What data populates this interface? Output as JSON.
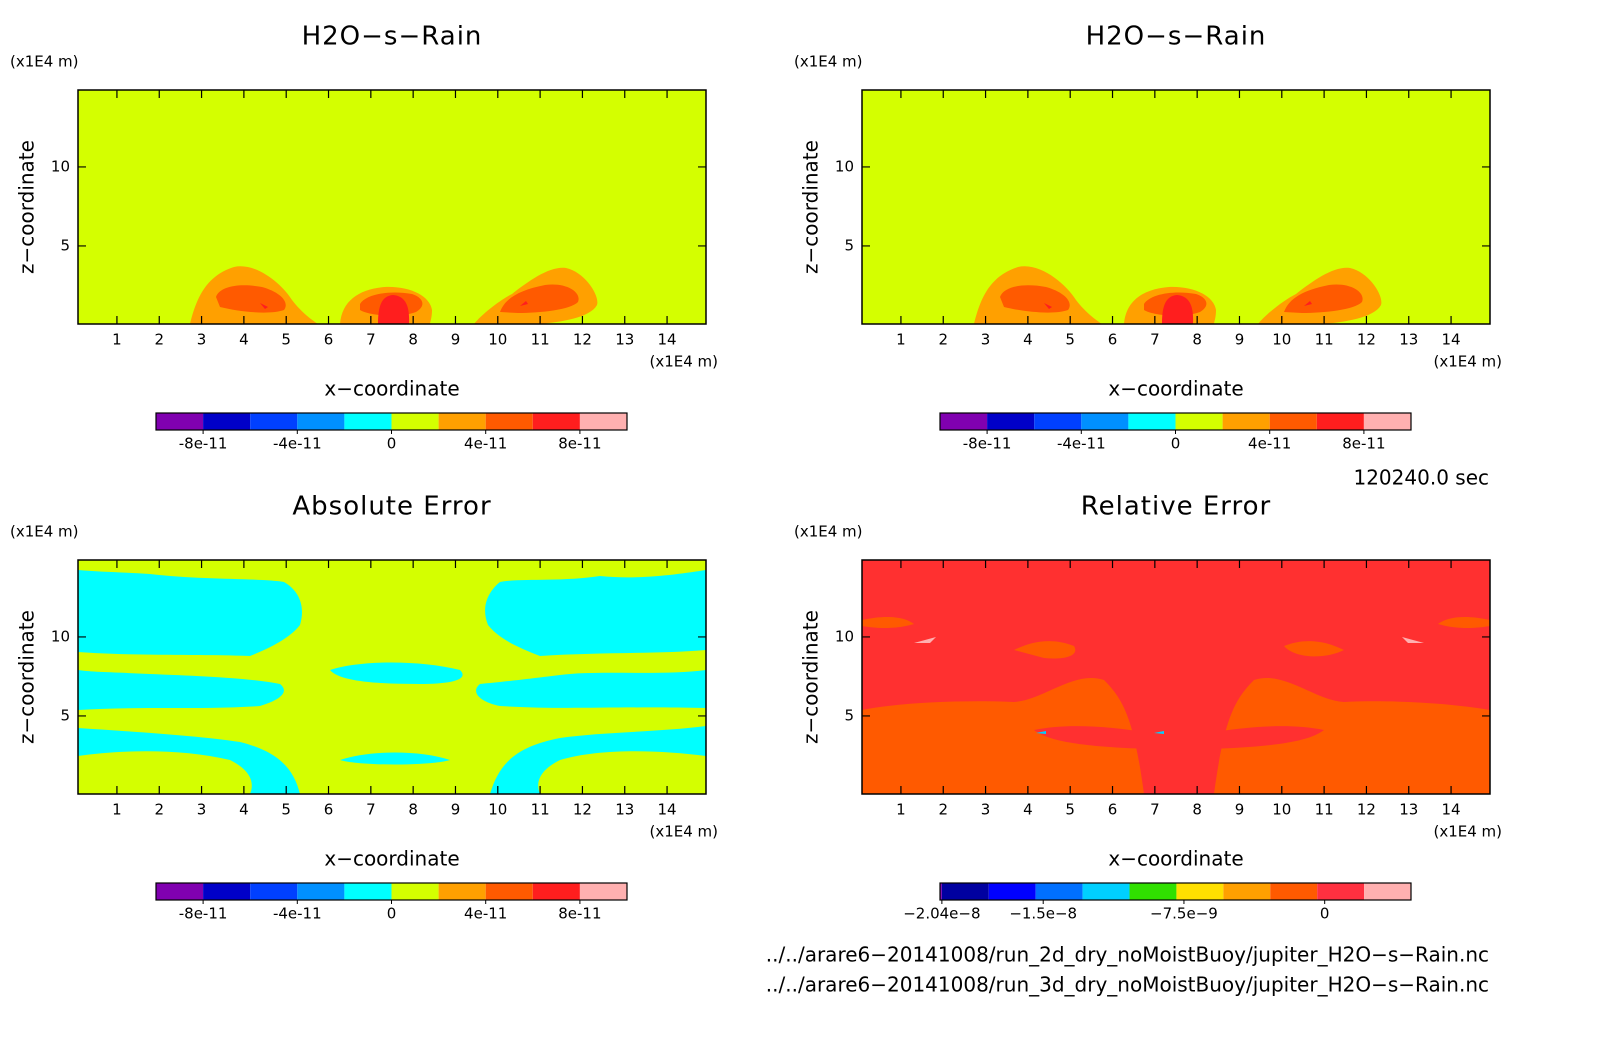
{
  "chart_data": [
    {
      "type": "contour",
      "title": "H2O−s−Rain",
      "x_label": "x−coordinate",
      "y_label": "z−coordinate",
      "x_unit": "(x1E4 m)",
      "y_unit": "(x1E4 m)",
      "xlim": [
        0.08,
        14.92
      ],
      "xticks": [
        1,
        2,
        3,
        4,
        5,
        6,
        7,
        8,
        9,
        10,
        11,
        12,
        13,
        14
      ],
      "ylim": [
        0.06,
        14.87
      ],
      "yticks": [
        5,
        10
      ],
      "background": "#d4ff00",
      "colorbar": {
        "levels": [
          -1e-10,
          -8e-11,
          -6e-11,
          -4e-11,
          -2e-11,
          0,
          2e-11,
          4e-11,
          6e-11,
          8e-11,
          1e-10
        ],
        "ticks": [
          -8e-11,
          -4e-11,
          0,
          4e-11,
          8e-11
        ],
        "colors": [
          "#8000b0",
          "#0000c8",
          "#0040ff",
          "#0090ff",
          "#00ffff",
          "#d4ff00",
          "#ffa000",
          "#ff5a00",
          "#ff1e1e",
          "#ffb0b0"
        ]
      }
    },
    {
      "type": "contour",
      "title": "H2O−s−Rain",
      "x_label": "x−coordinate",
      "y_label": "z−coordinate",
      "x_unit": "(x1E4 m)",
      "y_unit": "(x1E4 m)",
      "xlim": [
        0.08,
        14.92
      ],
      "xticks": [
        1,
        2,
        3,
        4,
        5,
        6,
        7,
        8,
        9,
        10,
        11,
        12,
        13,
        14
      ],
      "ylim": [
        0.06,
        14.87
      ],
      "yticks": [
        5,
        10
      ],
      "background": "#d4ff00",
      "colorbar": {
        "levels": [
          -1e-10,
          -8e-11,
          -6e-11,
          -4e-11,
          -2e-11,
          0,
          2e-11,
          4e-11,
          6e-11,
          8e-11,
          1e-10
        ],
        "ticks": [
          -8e-11,
          -4e-11,
          0,
          4e-11,
          8e-11
        ],
        "colors": [
          "#8000b0",
          "#0000c8",
          "#0040ff",
          "#0090ff",
          "#00ffff",
          "#d4ff00",
          "#ffa000",
          "#ff5a00",
          "#ff1e1e",
          "#ffb0b0"
        ]
      }
    },
    {
      "type": "contour",
      "title": "Absolute Error",
      "x_label": "x−coordinate",
      "y_label": "z−coordinate",
      "x_unit": "(x1E4 m)",
      "y_unit": "(x1E4 m)",
      "xlim": [
        0.08,
        14.92
      ],
      "xticks": [
        1,
        2,
        3,
        4,
        5,
        6,
        7,
        8,
        9,
        10,
        11,
        12,
        13,
        14
      ],
      "ylim": [
        0.06,
        14.87
      ],
      "yticks": [
        5,
        10
      ],
      "background": "#00ffff",
      "colorbar": {
        "levels": [
          -1e-10,
          -8e-11,
          -6e-11,
          -4e-11,
          -2e-11,
          0,
          2e-11,
          4e-11,
          6e-11,
          8e-11,
          1e-10
        ],
        "ticks": [
          -8e-11,
          -4e-11,
          0,
          4e-11,
          8e-11
        ],
        "colors": [
          "#8000b0",
          "#0000c8",
          "#0040ff",
          "#0090ff",
          "#00ffff",
          "#d4ff00",
          "#ffa000",
          "#ff5a00",
          "#ff1e1e",
          "#ffb0b0"
        ]
      }
    },
    {
      "type": "contour",
      "title": "Relative Error",
      "x_label": "x−coordinate",
      "y_label": "z−coordinate",
      "x_unit": "(x1E4 m)",
      "y_unit": "(x1E4 m)",
      "xlim": [
        0.08,
        14.92
      ],
      "xticks": [
        1,
        2,
        3,
        4,
        5,
        6,
        7,
        8,
        9,
        10,
        11,
        12,
        13,
        14
      ],
      "ylim": [
        0.06,
        14.87
      ],
      "yticks": [
        5,
        10
      ],
      "background": "#ff3030",
      "colorbar": {
        "levels": [
          -2.05e-08,
          -2.04e-08,
          -1.79e-08,
          -1.54e-08,
          -1.29e-08,
          -1.04e-08,
          -7.9e-09,
          -5.4e-09,
          -2.9e-09,
          -4e-10,
          2.1e-09,
          4.6e-09
        ],
        "ticks": [
          {
            "value": -2.04e-08,
            "label": "−2.04e−8"
          },
          {
            "value": -1.5e-08,
            "label": "−1.5e−8"
          },
          {
            "value": -7.5e-09,
            "label": "−7.5e−9"
          },
          0
        ],
        "colors": [
          "#8000b0",
          "#0000a0",
          "#0000ff",
          "#0070ff",
          "#00d0ff",
          "#30e000",
          "#ffe000",
          "#ffa000",
          "#ff5a00",
          "#ff3040",
          "#ffb0b0"
        ]
      }
    }
  ],
  "time_label": "120240.0 sec",
  "files": [
    "../../arare6−20141008/run_2d_dry_noMoistBuoy/jupiter_H2O−s−Rain.nc",
    "../../arare6−20141008/run_3d_dry_noMoistBuoy/jupiter_H2O−s−Rain.nc"
  ]
}
